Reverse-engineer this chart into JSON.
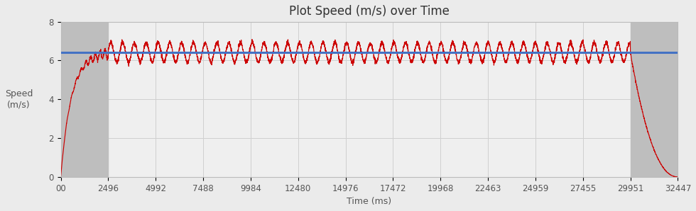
{
  "title": "Plot Speed (m/s) over Time",
  "xlabel": "Time (ms)",
  "ylabel": "Speed\n(m/s)",
  "xlim": [
    0,
    32447
  ],
  "ylim": [
    0,
    8
  ],
  "yticks": [
    0,
    2,
    4,
    6,
    8
  ],
  "xtick_labels": [
    "00",
    "2496",
    "4992",
    "7488",
    "9984",
    "12480",
    "14976",
    "17472",
    "19968",
    "22463",
    "24959",
    "27455",
    "29951",
    "32447"
  ],
  "xtick_positions": [
    0,
    2496,
    4992,
    7488,
    9984,
    12480,
    14976,
    17472,
    19968,
    22463,
    24959,
    27455,
    29951,
    32447
  ],
  "avg_speed": 6.42,
  "avg_line_color": "#4472C4",
  "speed_line_color": "#CC0000",
  "gray_region_left_start": 0,
  "gray_region_left_end": 2496,
  "gray_region_right_start": 29951,
  "gray_region_right_end": 32447,
  "gray_color": "#BEBEBE",
  "plot_bg_color": "#EFEFEF",
  "acceleration_end": 2496,
  "decel_start": 29951,
  "total_time": 32447,
  "cruise_speed_mean": 6.42,
  "cruise_speed_amplitude": 0.5,
  "cruise_oscillation_period": 620,
  "title_fontsize": 12,
  "label_fontsize": 9,
  "tick_fontsize": 8.5
}
